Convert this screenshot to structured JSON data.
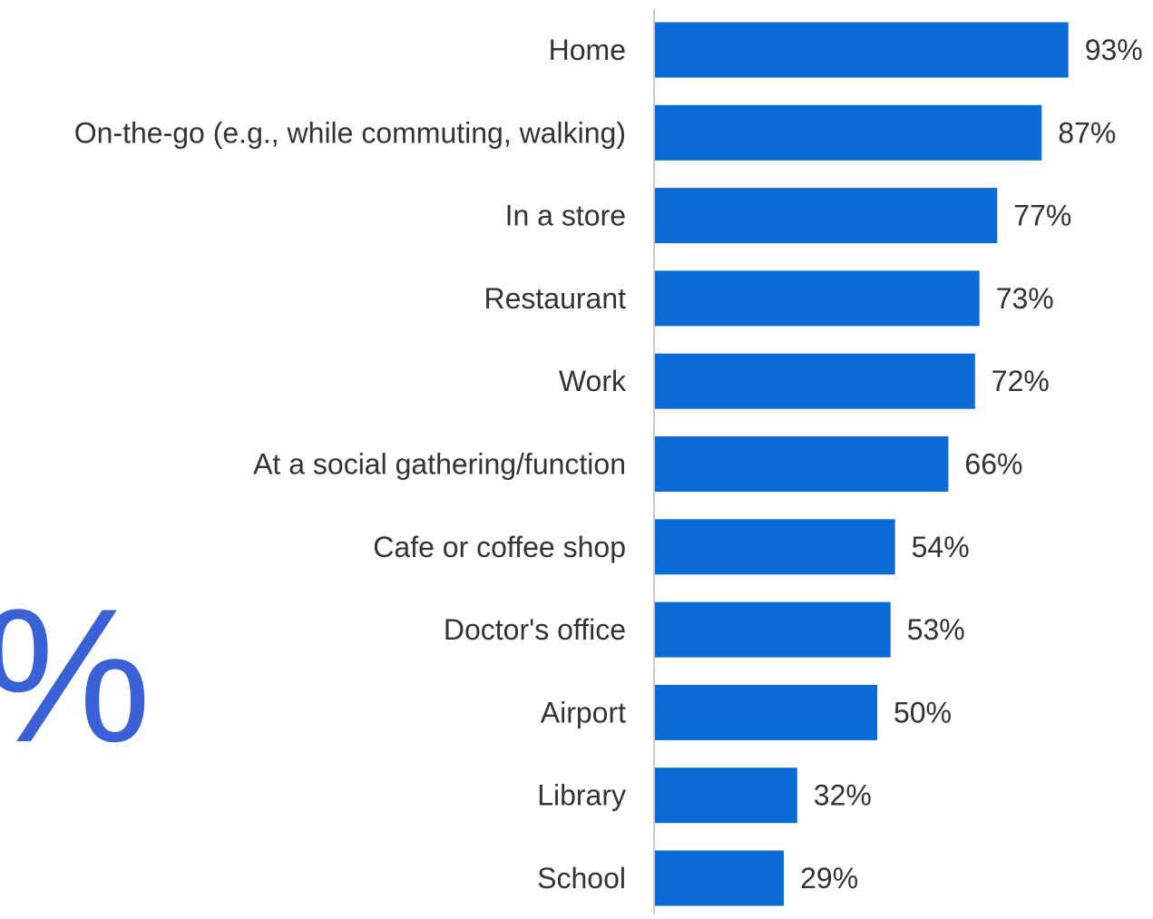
{
  "decor": {
    "big_glyph": "%",
    "big_glyph_color": "#3a62d6"
  },
  "chart_data": {
    "type": "bar",
    "orientation": "horizontal",
    "title": "",
    "xlabel": "",
    "ylabel": "",
    "value_suffix": "%",
    "xlim": [
      0,
      100
    ],
    "grid": false,
    "bar_color": "#0a6ad6",
    "axis_color": "#c8c8c8",
    "label_color": "#333333",
    "categories": [
      "Home",
      "On-the-go (e.g., while commuting, walking)",
      "In a store",
      "Restaurant",
      "Work",
      "At a social gathering/function",
      "Cafe or coffee shop",
      "Doctor's office",
      "Airport",
      "Library",
      "School"
    ],
    "values": [
      93,
      87,
      77,
      73,
      72,
      66,
      54,
      53,
      50,
      32,
      29
    ],
    "data_labels": [
      "93%",
      "87%",
      "77%",
      "73%",
      "72%",
      "66%",
      "54%",
      "53%",
      "50%",
      "32%",
      "29%"
    ]
  }
}
